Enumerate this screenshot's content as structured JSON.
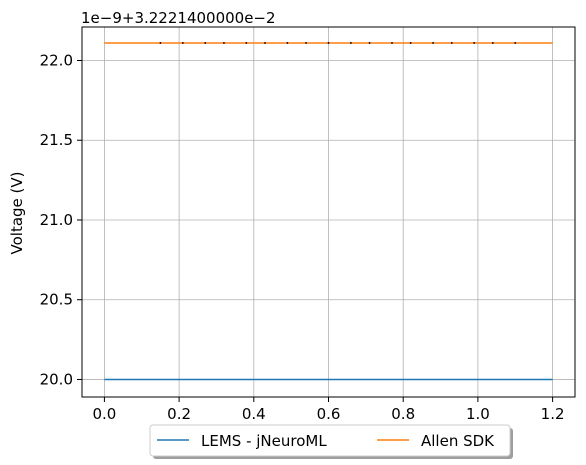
{
  "chart_data": {
    "type": "line",
    "offset_label": "1e−9+3.2221400000e−2",
    "ylabel": "Voltage (V)",
    "xlabel": "",
    "xlim": [
      -0.06,
      1.26
    ],
    "ylim": [
      19.89,
      22.21
    ],
    "x_ticks": [
      0.0,
      0.2,
      0.4,
      0.6,
      0.8,
      1.0,
      1.2
    ],
    "x_tick_labels": [
      "0.0",
      "0.2",
      "0.4",
      "0.6",
      "0.8",
      "1.0",
      "1.2"
    ],
    "y_ticks": [
      20.0,
      20.5,
      21.0,
      21.5,
      22.0
    ],
    "y_tick_labels": [
      "20.0",
      "20.5",
      "21.0",
      "21.5",
      "22.0"
    ],
    "grid": true,
    "legend_position": "bottom-center, outside",
    "series": [
      {
        "name": "LEMS - jNeuroML",
        "color": "#1f77b4",
        "x": [
          0.0,
          1.2
        ],
        "y": [
          20.0,
          20.0
        ]
      },
      {
        "name": "Allen SDK",
        "color": "#ff7f0e",
        "x": [
          0.0,
          1.2
        ],
        "y": [
          22.11,
          22.11
        ]
      }
    ],
    "marker_dots": {
      "color": "#000000",
      "x": [
        0.15,
        0.21,
        0.27,
        0.32,
        0.38,
        0.43,
        0.49,
        0.54,
        0.6,
        0.66,
        0.71,
        0.77,
        0.82,
        0.88,
        0.93,
        0.99,
        1.04,
        1.1
      ],
      "y": 22.11
    }
  }
}
